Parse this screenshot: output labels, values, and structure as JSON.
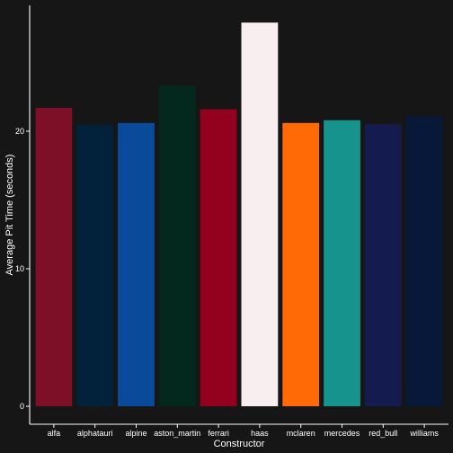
{
  "chart_data": {
    "type": "bar",
    "title": "",
    "xlabel": "Constructor",
    "ylabel": "Average Pit Time (seconds)",
    "ylim": [
      0,
      28.5
    ],
    "yticks": [
      0,
      10,
      20
    ],
    "grid": false,
    "legend": "none",
    "background": "#161616",
    "categories": [
      "alfa",
      "alphatauri",
      "alpine",
      "aston_martin",
      "ferrari",
      "haas",
      "mclaren",
      "mercedes",
      "red_bull",
      "williams"
    ],
    "values": [
      21.7,
      20.5,
      20.6,
      23.3,
      21.6,
      27.9,
      20.6,
      20.8,
      20.5,
      21.1
    ],
    "colors": [
      "#7D1027",
      "#02213A",
      "#0A4A9A",
      "#03291F",
      "#93011F",
      "#F8EEEF",
      "#FF6A06",
      "#17938D",
      "#141C4F",
      "#081838"
    ]
  }
}
